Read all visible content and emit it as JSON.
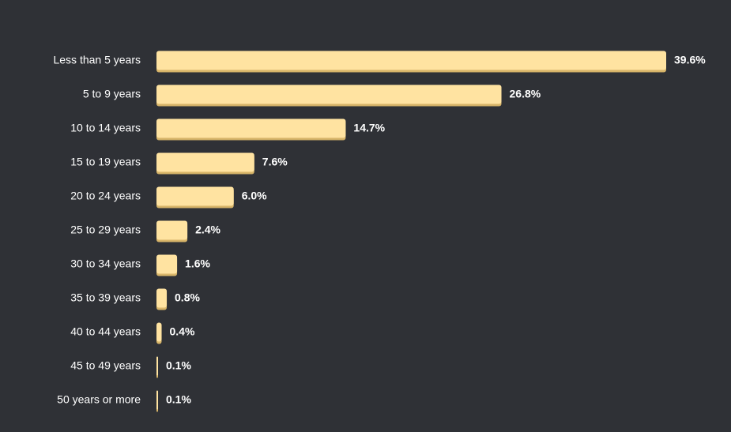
{
  "colors": {
    "background": "#2f3136",
    "bar": "#ffe3a1",
    "bar_shadow": "#d9b66a",
    "text": "#ffffff"
  },
  "chart_data": {
    "type": "bar",
    "orientation": "horizontal",
    "title": "",
    "xlabel": "",
    "ylabel": "",
    "grid": false,
    "legend": "none",
    "xlim": [
      0,
      39.6
    ],
    "categories": [
      "Less than 5 years",
      "5 to 9 years",
      "10 to 14 years",
      "15 to 19 years",
      "20 to 24 years",
      "25 to 29 years",
      "30 to 34 years",
      "35 to 39 years",
      "40 to 44 years",
      "45 to 49 years",
      "50 years or more"
    ],
    "values": [
      39.6,
      26.8,
      14.7,
      7.6,
      6.0,
      2.4,
      1.6,
      0.8,
      0.4,
      0.1,
      0.1
    ],
    "value_labels": [
      "39.6%",
      "26.8%",
      "14.7%",
      "7.6%",
      "6.0%",
      "2.4%",
      "1.6%",
      "0.8%",
      "0.4%",
      "0.1%",
      "0.1%"
    ]
  }
}
